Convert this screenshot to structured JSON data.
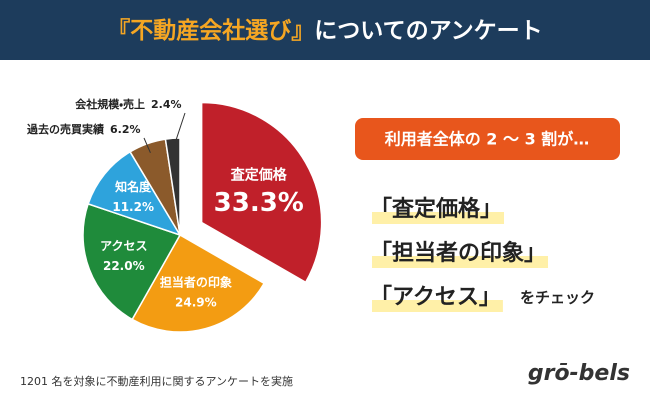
{
  "chart_data": {
    "type": "pie",
    "title": [
      "『不動産会社選び』",
      "についてのアンケート"
    ],
    "categories": [
      "査定価格",
      "担当者の印象",
      "アクセス",
      "知名度",
      "過去の売買実績",
      "会社規模・売上"
    ],
    "values": [
      33.3,
      24.9,
      22.0,
      11.2,
      6.2,
      2.4
    ],
    "value_labels": [
      "33.3%",
      "24.9%",
      "22.0%",
      "11.2%",
      "6.2%",
      "2.4%"
    ],
    "colors": [
      "#c0202a",
      "#f39c12",
      "#1f8b3b",
      "#2ea3dc",
      "#8b5a2b",
      "#333333"
    ]
  },
  "callout": {
    "heading": "利用者全体の 2 ～ 3 割が…",
    "items": [
      "「査定価格」",
      "「担当者の印象」",
      "「アクセス」"
    ],
    "suffix": "をチェック"
  },
  "footnote": "1201 名を対象に不動産利用に関するアンケートを実施",
  "logo": "grō-bels"
}
